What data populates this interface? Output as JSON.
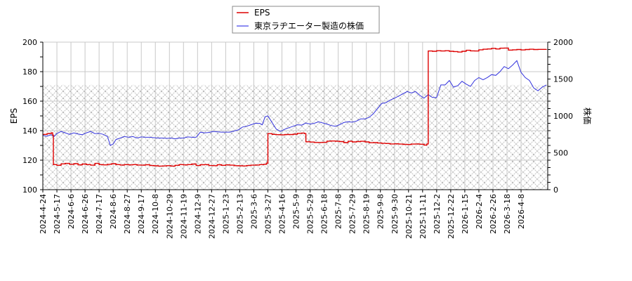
{
  "chart_data": {
    "type": "line",
    "title": "",
    "legend": {
      "position": "top-center",
      "entries": [
        {
          "label": "EPS",
          "color": "#dd0000"
        },
        {
          "label": "東京ラヂエーター製造の株価",
          "color": "#3333dd"
        }
      ]
    },
    "xlabel": "",
    "ylabel": "EPS",
    "y2label": "株価",
    "ylim": [
      100,
      200
    ],
    "y2lim": [
      0,
      2000
    ],
    "yticks": [
      100,
      120,
      140,
      160,
      180,
      200
    ],
    "y2ticks": [
      0,
      500,
      1000,
      1500,
      2000
    ],
    "grid": true,
    "hatch_band_eps": [
      100,
      171
    ],
    "x_tick_labels": [
      "2024-4-24",
      "2024-5-17",
      "2024-6-6",
      "2024-6-26",
      "2024-7-17",
      "2024-8-6",
      "2024-8-27",
      "2024-9-17",
      "2024-10-8",
      "2024-10-29",
      "2024-11-19",
      "2024-12-9",
      "2024-12-27",
      "2025-1-23",
      "2025-2-13",
      "2025-3-6",
      "2025-3-27",
      "2025-4-16",
      "2025-5-9",
      "2025-5-29",
      "2025-6-18",
      "2025-7-8",
      "2025-7-29",
      "2025-8-19",
      "2025-9-8",
      "2025-9-30",
      "2025-10-21",
      "2025-11-11",
      "2025-12-2",
      "2025-12-22",
      "2026-1-15",
      "2026-2-4",
      "2026-2-26",
      "2026-3-18",
      "2026-4-8"
    ],
    "series": [
      {
        "name": "EPS",
        "axis": "left",
        "color": "#dd0000",
        "points": [
          [
            0,
            137.5
          ],
          [
            0.3,
            138
          ],
          [
            0.6,
            138.5
          ],
          [
            0.7,
            137
          ],
          [
            0.75,
            117
          ],
          [
            1.0,
            116.5
          ],
          [
            1.3,
            117.5
          ],
          [
            1.6,
            117.8
          ],
          [
            1.9,
            117.2
          ],
          [
            2.2,
            117.6
          ],
          [
            2.5,
            116.8
          ],
          [
            2.8,
            117.4
          ],
          [
            3.1,
            117.0
          ],
          [
            3.4,
            116.6
          ],
          [
            3.7,
            117.8
          ],
          [
            4.0,
            117.0
          ],
          [
            4.3,
            116.8
          ],
          [
            4.6,
            117.2
          ],
          [
            4.9,
            117.6
          ],
          [
            5.2,
            117.0
          ],
          [
            5.5,
            116.7
          ],
          [
            5.8,
            117.0
          ],
          [
            6.1,
            116.8
          ],
          [
            6.4,
            117.0
          ],
          [
            6.7,
            116.7
          ],
          [
            7.0,
            116.6
          ],
          [
            7.3,
            116.9
          ],
          [
            7.6,
            116.4
          ],
          [
            7.9,
            116.2
          ],
          [
            8.2,
            116.0
          ],
          [
            8.5,
            116.1
          ],
          [
            8.8,
            116.3
          ],
          [
            9.1,
            116.0
          ],
          [
            9.4,
            116.5
          ],
          [
            9.7,
            117.0
          ],
          [
            10.0,
            116.8
          ],
          [
            10.3,
            117.0
          ],
          [
            10.6,
            117.4
          ],
          [
            10.9,
            116.4
          ],
          [
            11.2,
            116.9
          ],
          [
            11.5,
            117.0
          ],
          [
            11.8,
            116.4
          ],
          [
            12.1,
            116.3
          ],
          [
            12.4,
            116.9
          ],
          [
            12.7,
            116.5
          ],
          [
            13.0,
            116.8
          ],
          [
            13.3,
            116.6
          ],
          [
            13.6,
            116.3
          ],
          [
            13.9,
            116.2
          ],
          [
            14.2,
            116.1
          ],
          [
            14.5,
            116.4
          ],
          [
            14.8,
            116.6
          ],
          [
            15.1,
            116.7
          ],
          [
            15.4,
            117.0
          ],
          [
            15.7,
            117.2
          ],
          [
            15.9,
            118
          ],
          [
            16.0,
            138
          ],
          [
            16.3,
            137.5
          ],
          [
            16.6,
            137.3
          ],
          [
            16.9,
            137.2
          ],
          [
            17.2,
            137.4
          ],
          [
            17.5,
            137.4
          ],
          [
            17.8,
            137.6
          ],
          [
            18.1,
            138.2
          ],
          [
            18.4,
            138.4
          ],
          [
            18.6,
            138.0
          ],
          [
            18.7,
            132.5
          ],
          [
            19.0,
            132.3
          ],
          [
            19.3,
            132.0
          ],
          [
            19.6,
            132.0
          ],
          [
            19.9,
            132.1
          ],
          [
            20.2,
            132.9
          ],
          [
            20.5,
            133.0
          ],
          [
            20.8,
            132.8
          ],
          [
            21.1,
            132.6
          ],
          [
            21.4,
            131.9
          ],
          [
            21.7,
            132.8
          ],
          [
            22.0,
            132.4
          ],
          [
            22.3,
            132.6
          ],
          [
            22.6,
            132.8
          ],
          [
            22.9,
            132.4
          ],
          [
            23.2,
            131.8
          ],
          [
            23.5,
            131.9
          ],
          [
            23.8,
            131.6
          ],
          [
            24.1,
            131.4
          ],
          [
            24.4,
            131.3
          ],
          [
            24.7,
            131.0
          ],
          [
            25.0,
            131.1
          ],
          [
            25.3,
            130.9
          ],
          [
            25.6,
            130.7
          ],
          [
            25.9,
            130.6
          ],
          [
            26.2,
            130.9
          ],
          [
            26.5,
            131.0
          ],
          [
            26.8,
            130.8
          ],
          [
            27.1,
            130.2
          ],
          [
            27.3,
            131
          ],
          [
            27.4,
            194
          ],
          [
            27.7,
            193.8
          ],
          [
            28.0,
            194.2
          ],
          [
            28.3,
            194.0
          ],
          [
            28.6,
            194.2
          ],
          [
            28.9,
            193.8
          ],
          [
            29.2,
            193.6
          ],
          [
            29.5,
            193.3
          ],
          [
            29.8,
            193.8
          ],
          [
            30.1,
            194.5
          ],
          [
            30.4,
            194.1
          ],
          [
            30.7,
            194.0
          ],
          [
            31.0,
            194.8
          ],
          [
            31.3,
            195.2
          ],
          [
            31.6,
            195.4
          ],
          [
            31.9,
            195.8
          ],
          [
            32.2,
            195.4
          ],
          [
            32.5,
            195.9
          ],
          [
            32.8,
            196.0
          ],
          [
            33.1,
            194.6
          ],
          [
            33.4,
            194.8
          ],
          [
            33.7,
            195.0
          ],
          [
            34.0,
            194.7
          ],
          [
            34.3,
            195.0
          ],
          [
            34.6,
            195.2
          ],
          [
            34.9,
            195.0
          ],
          [
            35.2,
            195.1
          ],
          [
            35.8,
            195.2
          ]
        ]
      },
      {
        "name": "東京ラヂエーター製造の株価",
        "axis": "right",
        "color": "#3333dd",
        "points": [
          [
            0,
            735
          ],
          [
            0.3,
            725
          ],
          [
            0.6,
            745
          ],
          [
            0.8,
            720
          ],
          [
            1.0,
            760
          ],
          [
            1.3,
            790
          ],
          [
            1.6,
            770
          ],
          [
            1.9,
            750
          ],
          [
            2.2,
            770
          ],
          [
            2.5,
            755
          ],
          [
            2.8,
            745
          ],
          [
            3.1,
            770
          ],
          [
            3.4,
            790
          ],
          [
            3.7,
            760
          ],
          [
            4.0,
            765
          ],
          [
            4.3,
            750
          ],
          [
            4.6,
            720
          ],
          [
            4.8,
            600
          ],
          [
            5.0,
            620
          ],
          [
            5.2,
            680
          ],
          [
            5.5,
            700
          ],
          [
            5.8,
            720
          ],
          [
            6.1,
            710
          ],
          [
            6.4,
            720
          ],
          [
            6.7,
            700
          ],
          [
            7.0,
            715
          ],
          [
            7.3,
            710
          ],
          [
            7.6,
            710
          ],
          [
            7.9,
            705
          ],
          [
            8.2,
            700
          ],
          [
            8.5,
            700
          ],
          [
            8.8,
            695
          ],
          [
            9.1,
            700
          ],
          [
            9.4,
            690
          ],
          [
            9.7,
            700
          ],
          [
            10.0,
            700
          ],
          [
            10.3,
            715
          ],
          [
            10.6,
            710
          ],
          [
            10.9,
            710
          ],
          [
            11.2,
            780
          ],
          [
            11.5,
            770
          ],
          [
            11.8,
            775
          ],
          [
            12.1,
            790
          ],
          [
            12.4,
            785
          ],
          [
            12.7,
            780
          ],
          [
            13.0,
            780
          ],
          [
            13.3,
            780
          ],
          [
            13.6,
            795
          ],
          [
            13.9,
            810
          ],
          [
            14.2,
            850
          ],
          [
            14.5,
            860
          ],
          [
            14.8,
            880
          ],
          [
            15.1,
            900
          ],
          [
            15.4,
            900
          ],
          [
            15.6,
            880
          ],
          [
            15.8,
            990
          ],
          [
            16.0,
            1000
          ],
          [
            16.2,
            940
          ],
          [
            16.4,
            880
          ],
          [
            16.6,
            820
          ],
          [
            16.9,
            790
          ],
          [
            17.2,
            820
          ],
          [
            17.5,
            840
          ],
          [
            17.8,
            860
          ],
          [
            18.1,
            880
          ],
          [
            18.4,
            875
          ],
          [
            18.7,
            905
          ],
          [
            19.0,
            890
          ],
          [
            19.3,
            900
          ],
          [
            19.6,
            920
          ],
          [
            19.9,
            905
          ],
          [
            20.2,
            890
          ],
          [
            20.5,
            870
          ],
          [
            20.8,
            860
          ],
          [
            21.1,
            880
          ],
          [
            21.4,
            910
          ],
          [
            21.7,
            920
          ],
          [
            22.0,
            915
          ],
          [
            22.3,
            930
          ],
          [
            22.6,
            960
          ],
          [
            22.9,
            960
          ],
          [
            23.2,
            980
          ],
          [
            23.5,
            1030
          ],
          [
            23.8,
            1100
          ],
          [
            24.1,
            1170
          ],
          [
            24.4,
            1180
          ],
          [
            24.7,
            1215
          ],
          [
            25.0,
            1240
          ],
          [
            25.3,
            1270
          ],
          [
            25.6,
            1300
          ],
          [
            25.9,
            1330
          ],
          [
            26.2,
            1310
          ],
          [
            26.5,
            1330
          ],
          [
            26.8,
            1280
          ],
          [
            27.1,
            1240
          ],
          [
            27.4,
            1290
          ],
          [
            27.7,
            1250
          ],
          [
            28.0,
            1250
          ],
          [
            28.3,
            1420
          ],
          [
            28.6,
            1420
          ],
          [
            28.9,
            1480
          ],
          [
            29.2,
            1390
          ],
          [
            29.5,
            1410
          ],
          [
            29.8,
            1470
          ],
          [
            30.1,
            1430
          ],
          [
            30.4,
            1400
          ],
          [
            30.7,
            1480
          ],
          [
            31.0,
            1520
          ],
          [
            31.3,
            1490
          ],
          [
            31.6,
            1520
          ],
          [
            31.9,
            1560
          ],
          [
            32.2,
            1550
          ],
          [
            32.5,
            1600
          ],
          [
            32.8,
            1670
          ],
          [
            33.1,
            1640
          ],
          [
            33.4,
            1690
          ],
          [
            33.7,
            1750
          ],
          [
            34.0,
            1590
          ],
          [
            34.3,
            1520
          ],
          [
            34.6,
            1480
          ],
          [
            34.9,
            1380
          ],
          [
            35.2,
            1340
          ],
          [
            35.5,
            1390
          ],
          [
            35.8,
            1420
          ]
        ]
      }
    ]
  },
  "legend": {
    "eps_label": "EPS",
    "price_label": "東京ラヂエーター製造の株価"
  },
  "axes": {
    "left_title": "EPS",
    "right_title": "株価"
  }
}
